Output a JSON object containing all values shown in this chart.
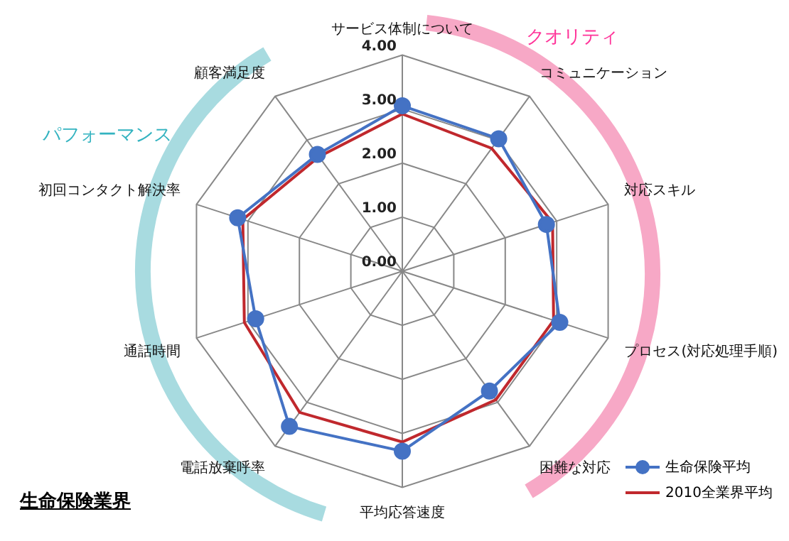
{
  "chart_data": {
    "type": "radar",
    "title": "生命保険業界",
    "categories": [
      "サービス体制について",
      "コミュニケーション",
      "対応スキル",
      "プロセス(対応処理手順)",
      "困難な対応",
      "平均応答速度",
      "電話放棄呼率",
      "通話時間",
      "初回コンタクト解決率",
      "顧客満足度"
    ],
    "series": [
      {
        "name": "生命保険平均",
        "color": "#4472c4",
        "marker": "circle",
        "values": [
          3.06,
          3.03,
          2.8,
          3.06,
          2.74,
          3.33,
          3.55,
          2.85,
          3.2,
          2.67
        ]
      },
      {
        "name": "2010全業界平均",
        "color": "#c0282d",
        "marker": "none",
        "values": [
          2.91,
          2.81,
          2.92,
          2.94,
          2.94,
          3.16,
          3.23,
          3.07,
          3.1,
          2.62
        ]
      }
    ],
    "ylim": [
      0,
      4
    ],
    "yticks": [
      {
        "value": 0,
        "label": "0.00"
      },
      {
        "value": 1,
        "label": "1.00"
      },
      {
        "value": 2,
        "label": "2.00"
      },
      {
        "value": 3,
        "label": "3.00"
      },
      {
        "value": 4,
        "label": "4.00"
      }
    ],
    "grid": true,
    "legend": "bottom right",
    "annotations": [
      "クオリティ",
      "パフォーマンス"
    ]
  }
}
